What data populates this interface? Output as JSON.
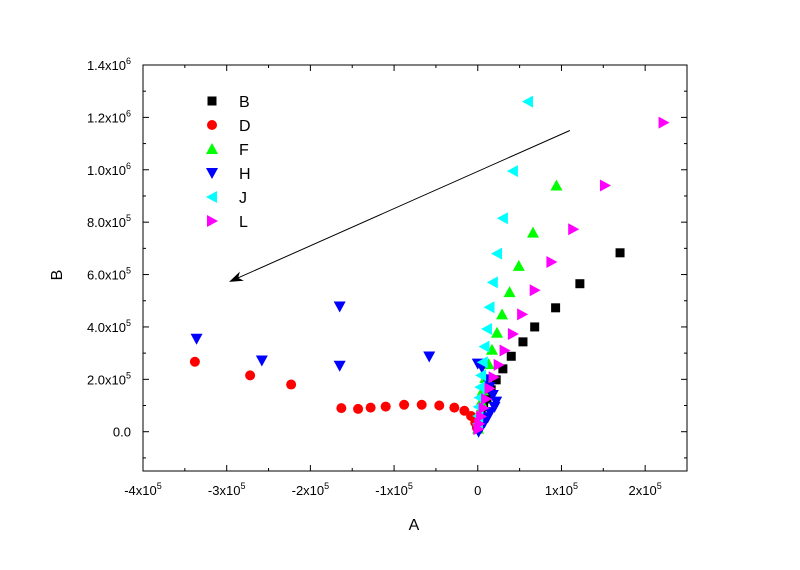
{
  "chart_data": {
    "type": "scatter",
    "title": "",
    "xlabel": "A",
    "ylabel": "B",
    "xlim": [
      -400000,
      250000
    ],
    "ylim": [
      -150000,
      1400000
    ],
    "x_ticks": [
      {
        "value": -400000,
        "mant": "-4x10",
        "exp": "5"
      },
      {
        "value": -300000,
        "mant": "-3x10",
        "exp": "5"
      },
      {
        "value": -200000,
        "mant": "-2x10",
        "exp": "5"
      },
      {
        "value": -100000,
        "mant": "-1x10",
        "exp": "5"
      },
      {
        "value": 0,
        "mant": "0",
        "exp": ""
      },
      {
        "value": 100000,
        "mant": "1x10",
        "exp": "5"
      },
      {
        "value": 200000,
        "mant": "2x10",
        "exp": "5"
      }
    ],
    "y_ticks": [
      {
        "value": 0,
        "mant": "0.0",
        "exp": ""
      },
      {
        "value": 200000,
        "mant": "2.0x10",
        "exp": "5"
      },
      {
        "value": 400000,
        "mant": "4.0x10",
        "exp": "5"
      },
      {
        "value": 600000,
        "mant": "6.0x10",
        "exp": "5"
      },
      {
        "value": 800000,
        "mant": "8.0x10",
        "exp": "5"
      },
      {
        "value": 1000000,
        "mant": "1.0x10",
        "exp": "6"
      },
      {
        "value": 1200000,
        "mant": "1.2x10",
        "exp": "6"
      },
      {
        "value": 1400000,
        "mant": "1.4x10",
        "exp": "6"
      }
    ],
    "grid": false,
    "legend_position": "top-left",
    "arrow": {
      "from": [
        110000,
        1150000
      ],
      "to": [
        -295000,
        575000
      ]
    },
    "series": [
      {
        "name": "B",
        "marker": "square",
        "color": "#000000",
        "points": [
          [
            170000,
            683000
          ],
          [
            122000,
            565000
          ],
          [
            93000,
            473000
          ],
          [
            68000,
            400000
          ],
          [
            54000,
            343000
          ],
          [
            40000,
            288000
          ],
          [
            30000,
            240000
          ],
          [
            22000,
            198000
          ],
          [
            16000,
            160000
          ],
          [
            11000,
            125000
          ],
          [
            7000,
            95000
          ],
          [
            4000,
            65000
          ],
          [
            2000,
            38000
          ],
          [
            800,
            15000
          ]
        ]
      },
      {
        "name": "D",
        "marker": "circle",
        "color": "#ff0000",
        "points": [
          [
            -338000,
            267000
          ],
          [
            -272000,
            215000
          ],
          [
            -223000,
            180000
          ],
          [
            -163000,
            90000
          ],
          [
            -143000,
            87000
          ],
          [
            -128000,
            92000
          ],
          [
            -110000,
            96000
          ],
          [
            -88000,
            103000
          ],
          [
            -67000,
            103000
          ],
          [
            -46000,
            100000
          ],
          [
            -28000,
            92000
          ],
          [
            -16000,
            80000
          ],
          [
            -8000,
            60000
          ],
          [
            -3000,
            35000
          ],
          [
            -1000,
            15000
          ]
        ]
      },
      {
        "name": "F",
        "marker": "triangle-up",
        "color": "#00ff00",
        "points": [
          [
            94000,
            940000
          ],
          [
            66000,
            760000
          ],
          [
            49000,
            633000
          ],
          [
            38000,
            533000
          ],
          [
            29000,
            448000
          ],
          [
            23000,
            378000
          ],
          [
            17000,
            313000
          ],
          [
            13000,
            258000
          ],
          [
            9000,
            205000
          ],
          [
            6000,
            158000
          ],
          [
            4000,
            115000
          ],
          [
            2000,
            75000
          ],
          [
            1000,
            40000
          ],
          [
            300,
            12000
          ]
        ]
      },
      {
        "name": "H",
        "marker": "triangle-down",
        "color": "#0000ff",
        "points": [
          [
            -336000,
            355000
          ],
          [
            -165000,
            478000
          ],
          [
            -258000,
            272000
          ],
          [
            -165000,
            252000
          ],
          [
            -58000,
            287000
          ],
          [
            0,
            260000
          ],
          [
            14000,
            170000
          ],
          [
            18000,
            140000
          ],
          [
            22000,
            115000
          ],
          [
            20000,
            95000
          ],
          [
            15000,
            75000
          ],
          [
            12000,
            55000
          ],
          [
            8000,
            35000
          ],
          [
            4000,
            15000
          ],
          [
            1000,
            0
          ],
          [
            5000,
            245000
          ],
          [
            10000,
            200000
          ]
        ]
      },
      {
        "name": "J",
        "marker": "triangle-left",
        "color": "#00ffff",
        "points": [
          [
            60000,
            1260000
          ],
          [
            42000,
            995000
          ],
          [
            30000,
            815000
          ],
          [
            23000,
            680000
          ],
          [
            18000,
            570000
          ],
          [
            14000,
            475000
          ],
          [
            11000,
            392000
          ],
          [
            8000,
            325000
          ],
          [
            6000,
            265000
          ],
          [
            4000,
            215000
          ],
          [
            3000,
            170000
          ],
          [
            2000,
            130000
          ],
          [
            1000,
            95000
          ],
          [
            500,
            60000
          ],
          [
            200,
            30000
          ]
        ]
      },
      {
        "name": "L",
        "marker": "triangle-right",
        "color": "#ff00ff",
        "points": [
          [
            222000,
            1180000
          ],
          [
            152000,
            940000
          ],
          [
            114000,
            773000
          ],
          [
            88000,
            648000
          ],
          [
            68000,
            540000
          ],
          [
            53000,
            448000
          ],
          [
            42000,
            373000
          ],
          [
            32000,
            310000
          ],
          [
            25000,
            255000
          ],
          [
            19000,
            208000
          ],
          [
            14000,
            165000
          ],
          [
            10000,
            125000
          ],
          [
            7000,
            90000
          ],
          [
            4000,
            58000
          ],
          [
            2000,
            30000
          ],
          [
            800,
            10000
          ]
        ]
      }
    ]
  }
}
